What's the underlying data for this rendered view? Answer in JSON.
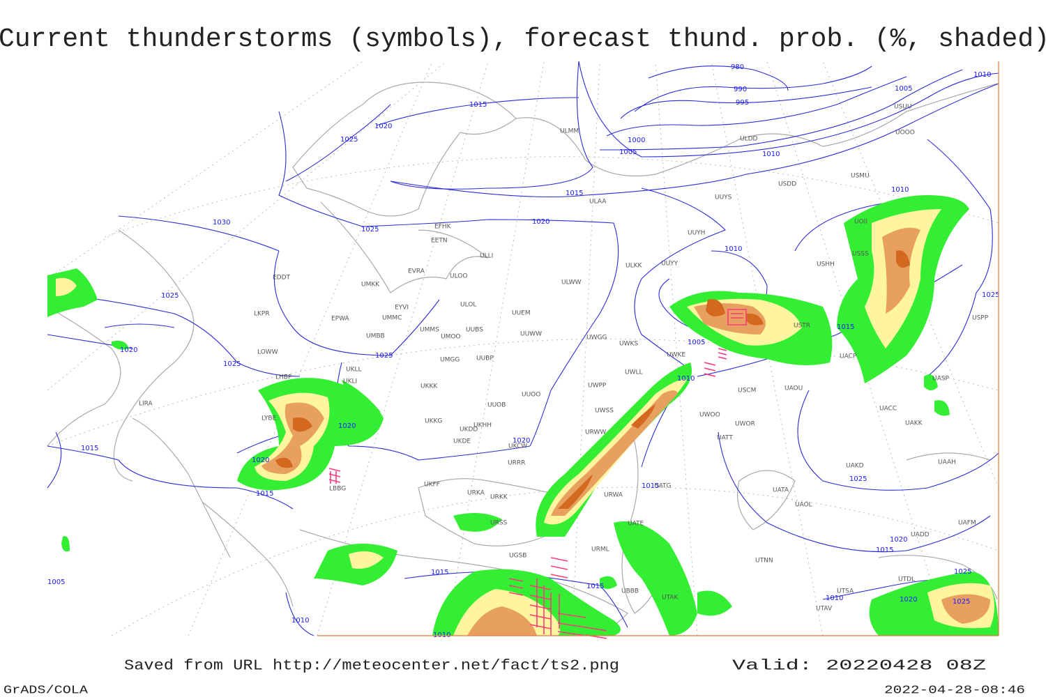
{
  "title": "Current thunderstorms (symbols), forecast thund. prob. (%, shaded)",
  "footer": {
    "source": "Saved from URL http://meteocenter.net/fact/ts2.png",
    "valid": "Valid: 20220428 08Z",
    "software": "GrADS/COLA",
    "timestamp": "2022-04-28-08:46"
  },
  "isobar_labels": [
    980,
    990,
    995,
    1000,
    1005,
    1005,
    1010,
    1010,
    1015,
    1020,
    1025,
    1015,
    1025,
    1020,
    1030,
    1010,
    1010,
    1025,
    1020,
    1025,
    1025,
    1005,
    1010,
    1015,
    1025,
    1020,
    1020,
    1015,
    1020,
    1015,
    1015,
    1025,
    1020,
    1015,
    1025,
    1020,
    1025,
    1015,
    1015,
    1010,
    1010,
    1005,
    1010
  ],
  "stations": [
    "ULMM",
    "ULDD",
    "USDD",
    "USMU",
    "ULAA",
    "UUYS",
    "UUYH",
    "EFHK",
    "EETN",
    "ULLI",
    "ULKK",
    "UUYY",
    "EVRA",
    "ULOO",
    "EDDT",
    "UMKK",
    "ULWW",
    "ULOL",
    "UUEM",
    "EYVI",
    "UMMC",
    "LKPR",
    "EPWA",
    "UMMS",
    "UUBS",
    "UUWW",
    "UMOO",
    "UMBB",
    "UWGG",
    "UWKS",
    "USHH",
    "USTR",
    "UWKE",
    "UACP",
    "UUBP",
    "UMGG",
    "LOWW",
    "UKLL",
    "UWLL",
    "UKLI",
    "LHBP",
    "UACC",
    "UASP",
    "UWPP",
    "USCM",
    "UAOU",
    "UKKK",
    "UUOO",
    "UUOB",
    "UWSS",
    "LYBE",
    "UWOO",
    "UAKK",
    "UKHH",
    "UKDD",
    "UKKG",
    "UKDE",
    "UWOR",
    "URWW",
    "UATT",
    "UKCW",
    "LIRA",
    "URRR",
    "UAKD",
    "UAAH",
    "UKFF",
    "URKA",
    "URKK",
    "URWA",
    "UATG",
    "UATA",
    "UAOL",
    "UAFM",
    "LBBG",
    "URSS",
    "UATE",
    "UADD",
    "UGSB",
    "URML",
    "UTNN",
    "UTDL",
    "UBBB",
    "UTAK",
    "UTSA",
    "UTAV",
    "USUU",
    "UOOO",
    "UOII",
    "USSS",
    "USPP"
  ]
}
